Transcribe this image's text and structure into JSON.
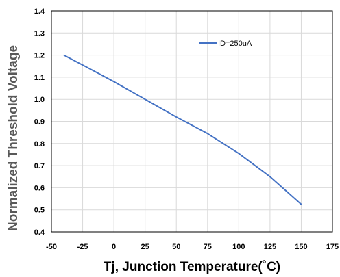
{
  "chart_data": {
    "type": "line",
    "title": "",
    "xlabel": "Tj, Junction Temperature(˚C)",
    "ylabel": "Normalized Threshold Voltage",
    "xlim": [
      -50,
      175
    ],
    "ylim": [
      0.4,
      1.4
    ],
    "x_ticks": [
      -50,
      -25,
      0,
      25,
      50,
      75,
      100,
      125,
      150,
      175
    ],
    "y_ticks": [
      0.4,
      0.5,
      0.6,
      0.7,
      0.8,
      0.9,
      1.0,
      1.1,
      1.2,
      1.3,
      1.4
    ],
    "x_tick_labels": [
      "-50",
      "-25",
      "0",
      "25",
      "50",
      "75",
      "100",
      "125",
      "150",
      "175"
    ],
    "y_tick_labels": [
      "0.4",
      "0.5",
      "0.6",
      "0.7",
      "0.8",
      "0.9",
      "1.0",
      "1.1",
      "1.2",
      "1.3",
      "1.4"
    ],
    "grid": true,
    "legend_position": "top-right",
    "series": [
      {
        "name": "ID=250uA",
        "color": "#4472C4",
        "x": [
          -40,
          -25,
          0,
          25,
          50,
          75,
          100,
          125,
          150
        ],
        "y": [
          1.2,
          1.155,
          1.08,
          1.0,
          0.92,
          0.845,
          0.755,
          0.65,
          0.525
        ]
      }
    ]
  }
}
